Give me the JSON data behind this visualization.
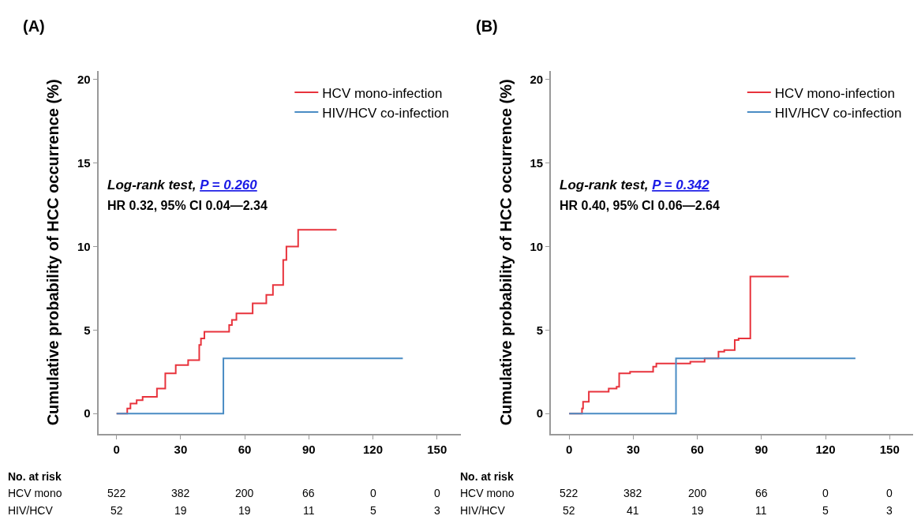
{
  "chart_data": [
    {
      "type": "step",
      "title": "(A)",
      "ylabel": "Cumulative probability of HCC occurrence (%)",
      "xlim": [
        -8.5,
        161
      ],
      "xticks": [
        0,
        30,
        60,
        90,
        120,
        150
      ],
      "ylim": [
        -1.2,
        20.5
      ],
      "yticks": [
        0,
        5,
        10,
        15,
        20
      ],
      "legend": "top right",
      "marker": "none",
      "line_style": "solid",
      "series": [
        {
          "name": "HCV mono-infection",
          "color": "#e8333c",
          "x": [
            0,
            5,
            6.5,
            9.4,
            12.2,
            18.9,
            22.8,
            27.7,
            33.5,
            38.7,
            39.5,
            41.1,
            52.7,
            54,
            56.1,
            63.7,
            70.1,
            73.2,
            78.0,
            79.5,
            85,
            103
          ],
          "values": [
            0,
            0.3,
            0.6,
            0.8,
            1.0,
            1.5,
            2.4,
            2.9,
            3.2,
            4.1,
            4.5,
            4.9,
            5.3,
            5.6,
            6.0,
            6.6,
            7.1,
            7.7,
            9.2,
            10.0,
            11.0,
            11.0
          ]
        },
        {
          "name": "HIV/HCV co-infection",
          "color": "#4a8cc4",
          "x": [
            0,
            50,
            134
          ],
          "values": [
            0,
            3.3,
            3.3
          ]
        }
      ],
      "annotations": [
        "Log-rank test,",
        "P = 0.260",
        "HR 0.32, 95% CI 0.04—2.34",
        "No. at risk",
        "HCV mono",
        "522",
        "382",
        "200",
        "66",
        "0",
        "0",
        "HIV/HCV",
        "52",
        "19",
        "19",
        "11",
        "5",
        "3"
      ]
    },
    {
      "type": "step",
      "title": "(B)",
      "ylabel": "Cumulative probability of HCC occurrence (%)",
      "xlim": [
        -8.5,
        161
      ],
      "xticks": [
        0,
        30,
        60,
        90,
        120,
        150
      ],
      "ylim": [
        -1.2,
        20.5
      ],
      "yticks": [
        0,
        5,
        10,
        15,
        20
      ],
      "legend": "top right",
      "marker": "none",
      "line_style": "solid",
      "series": [
        {
          "name": "HCV mono-infection",
          "color": "#e8333c",
          "x": [
            0,
            6,
            6.5,
            9.2,
            18.5,
            22.2,
            23.4,
            28.5,
            39.3,
            40.8,
            56.7,
            63.4,
            69.9,
            72.6,
            77.5,
            79.3,
            84.8,
            102.8
          ],
          "values": [
            0,
            0.3,
            0.7,
            1.3,
            1.5,
            1.6,
            2.4,
            2.5,
            2.8,
            3.0,
            3.1,
            3.3,
            3.7,
            3.8,
            4.4,
            4.5,
            8.2,
            8.2
          ]
        },
        {
          "name": "HIV/HCV co-infection",
          "color": "#4a8cc4",
          "x": [
            0,
            50,
            134
          ],
          "values": [
            0,
            3.3,
            3.3
          ]
        }
      ],
      "annotations": [
        "Log-rank test,",
        "P = 0.342",
        "HR 0.40, 95% CI 0.06—2.64",
        "No. at risk",
        "HCV mono",
        "522",
        "382",
        "200",
        "66",
        "0",
        "0",
        "HIV/HCV",
        "52",
        "41",
        "19",
        "11",
        "5",
        "3"
      ]
    }
  ]
}
